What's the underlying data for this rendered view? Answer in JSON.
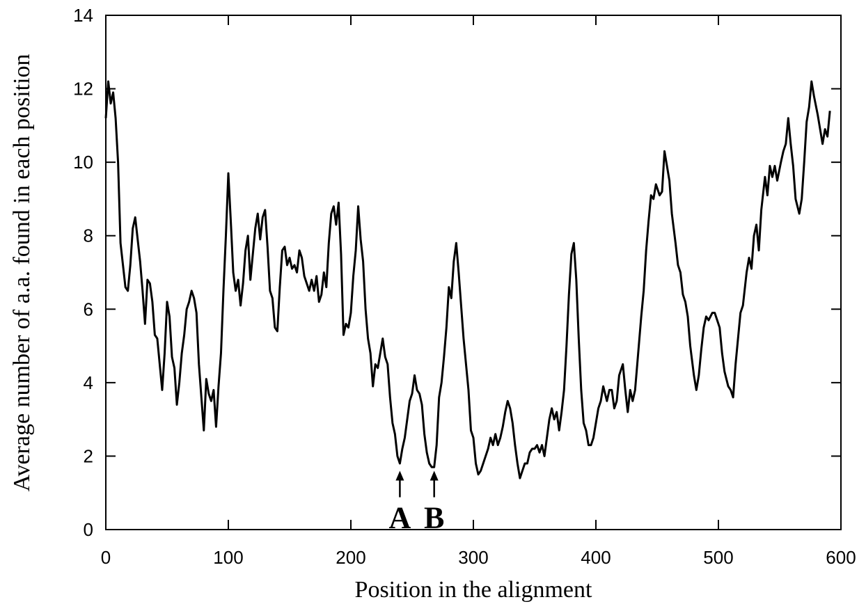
{
  "chart_data": {
    "type": "line",
    "xlabel": "Position in the alignment",
    "ylabel": "Average number of a.a. found in each position",
    "xlim": [
      0,
      600
    ],
    "ylim": [
      0,
      14
    ],
    "xticks": [
      0,
      100,
      200,
      300,
      400,
      500,
      600
    ],
    "yticks": [
      0,
      2,
      4,
      6,
      8,
      10,
      12,
      14
    ],
    "grid": false,
    "x": [
      0,
      2,
      4,
      6,
      8,
      10,
      12,
      14,
      16,
      18,
      20,
      22,
      24,
      26,
      28,
      30,
      32,
      34,
      36,
      38,
      40,
      42,
      44,
      46,
      48,
      50,
      52,
      54,
      56,
      58,
      60,
      62,
      64,
      66,
      68,
      70,
      72,
      74,
      76,
      78,
      80,
      82,
      84,
      86,
      88,
      90,
      92,
      94,
      96,
      98,
      100,
      102,
      104,
      106,
      108,
      110,
      112,
      114,
      116,
      118,
      120,
      122,
      124,
      126,
      128,
      130,
      132,
      134,
      136,
      138,
      140,
      142,
      144,
      146,
      148,
      150,
      152,
      154,
      156,
      158,
      160,
      162,
      164,
      166,
      168,
      170,
      172,
      174,
      176,
      178,
      180,
      182,
      184,
      186,
      188,
      190,
      192,
      194,
      196,
      198,
      200,
      202,
      204,
      206,
      208,
      210,
      212,
      214,
      216,
      218,
      220,
      222,
      224,
      226,
      228,
      230,
      232,
      234,
      236,
      238,
      240,
      242,
      244,
      246,
      248,
      250,
      252,
      254,
      256,
      258,
      260,
      262,
      264,
      266,
      268,
      270,
      272,
      274,
      276,
      278,
      280,
      282,
      284,
      286,
      288,
      290,
      292,
      294,
      296,
      298,
      300,
      302,
      304,
      306,
      308,
      310,
      312,
      314,
      316,
      318,
      320,
      322,
      324,
      326,
      328,
      330,
      332,
      334,
      336,
      338,
      340,
      342,
      344,
      346,
      348,
      350,
      352,
      354,
      356,
      358,
      360,
      362,
      364,
      366,
      368,
      370,
      372,
      374,
      376,
      378,
      380,
      382,
      384,
      386,
      388,
      390,
      392,
      394,
      396,
      398,
      400,
      402,
      404,
      406,
      409,
      411,
      413,
      415,
      417,
      419,
      422,
      424,
      426,
      428,
      430,
      432,
      434,
      437,
      439,
      441,
      443,
      445,
      447,
      449,
      452,
      454,
      456,
      458,
      460,
      462,
      465,
      467,
      469,
      471,
      473,
      475,
      477,
      480,
      482,
      484,
      486,
      488,
      490,
      492,
      495,
      497,
      499,
      501,
      503,
      505,
      508,
      510,
      512,
      514,
      516,
      518,
      520,
      523,
      525,
      527,
      529,
      531,
      533,
      535,
      538,
      540,
      542,
      544,
      546,
      548,
      551,
      553,
      555,
      557,
      559,
      561,
      563,
      566,
      568,
      570,
      572,
      574,
      576,
      578,
      581,
      583,
      585,
      587,
      589,
      591
    ],
    "series": [
      {
        "color": "#000000",
        "values": [
          11.2,
          12.2,
          11.6,
          11.9,
          11.2,
          10.0,
          7.8,
          7.2,
          6.6,
          6.5,
          7.2,
          8.2,
          8.5,
          7.9,
          7.3,
          6.5,
          5.6,
          6.8,
          6.7,
          6.2,
          5.3,
          5.2,
          4.5,
          3.8,
          4.8,
          6.2,
          5.8,
          4.7,
          4.4,
          3.4,
          4.0,
          4.8,
          5.3,
          6.0,
          6.2,
          6.5,
          6.3,
          5.9,
          4.5,
          3.6,
          2.7,
          4.1,
          3.7,
          3.5,
          3.8,
          2.8,
          3.9,
          4.8,
          6.5,
          8.0,
          9.7,
          8.4,
          7.0,
          6.5,
          6.8,
          6.1,
          6.7,
          7.6,
          8.0,
          6.8,
          7.5,
          8.2,
          8.6,
          7.9,
          8.5,
          8.7,
          7.7,
          6.5,
          6.3,
          5.5,
          5.4,
          6.6,
          7.6,
          7.7,
          7.2,
          7.4,
          7.1,
          7.2,
          7.0,
          7.6,
          7.4,
          6.9,
          6.7,
          6.5,
          6.8,
          6.5,
          6.9,
          6.2,
          6.4,
          7.0,
          6.6,
          7.8,
          8.6,
          8.8,
          8.3,
          8.9,
          7.5,
          5.3,
          5.6,
          5.5,
          5.9,
          6.9,
          7.6,
          8.8,
          7.9,
          7.3,
          6.0,
          5.2,
          4.8,
          3.9,
          4.5,
          4.4,
          4.8,
          5.2,
          4.7,
          4.5,
          3.6,
          2.9,
          2.6,
          2.0,
          1.8,
          2.2,
          2.5,
          3.0,
          3.5,
          3.7,
          4.2,
          3.8,
          3.7,
          3.4,
          2.6,
          2.1,
          1.8,
          1.7,
          1.7,
          2.3,
          3.6,
          4.0,
          4.7,
          5.5,
          6.6,
          6.3,
          7.3,
          7.8,
          7.0,
          6.1,
          5.2,
          4.5,
          3.8,
          2.7,
          2.5,
          1.8,
          1.5,
          1.6,
          1.8,
          2.0,
          2.2,
          2.5,
          2.3,
          2.6,
          2.3,
          2.5,
          2.8,
          3.2,
          3.5,
          3.3,
          2.9,
          2.3,
          1.8,
          1.4,
          1.6,
          1.8,
          1.8,
          2.1,
          2.2,
          2.2,
          2.3,
          2.1,
          2.3,
          2.0,
          2.5,
          3.0,
          3.3,
          3.0,
          3.2,
          2.7,
          3.2,
          3.8,
          5.0,
          6.4,
          7.5,
          7.8,
          6.8,
          5.2,
          3.8,
          2.9,
          2.7,
          2.3,
          2.3,
          2.5,
          2.9,
          3.3,
          3.5,
          3.9,
          3.5,
          3.8,
          3.8,
          3.3,
          3.5,
          4.2,
          4.5,
          3.8,
          3.2,
          3.8,
          3.5,
          3.8,
          4.6,
          5.8,
          6.5,
          7.6,
          8.4,
          9.1,
          9.0,
          9.4,
          9.1,
          9.2,
          10.3,
          9.9,
          9.5,
          8.6,
          7.8,
          7.2,
          7.0,
          6.4,
          6.2,
          5.8,
          5.0,
          4.2,
          3.8,
          4.2,
          4.9,
          5.5,
          5.8,
          5.7,
          5.9,
          5.9,
          5.7,
          5.5,
          4.8,
          4.3,
          3.9,
          3.8,
          3.6,
          4.5,
          5.2,
          5.9,
          6.1,
          7.0,
          7.4,
          7.1,
          8.0,
          8.3,
          7.6,
          8.7,
          9.6,
          9.1,
          9.9,
          9.6,
          9.9,
          9.5,
          10.0,
          10.3,
          10.5,
          11.2,
          10.5,
          9.9,
          9.0,
          8.6,
          9.0,
          10.0,
          11.1,
          11.5,
          12.2,
          11.8,
          11.3,
          10.9,
          10.5,
          10.9,
          10.7,
          11.4
        ]
      }
    ],
    "annotations": [
      {
        "text": "A",
        "x": 240,
        "y": 1.6
      },
      {
        "text": "B",
        "x": 268,
        "y": 1.6
      }
    ]
  }
}
